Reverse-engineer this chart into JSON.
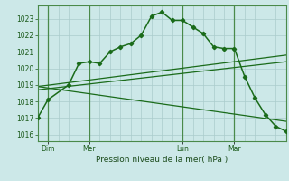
{
  "background_color": "#cce8e8",
  "grid_color": "#aacccc",
  "line_color": "#1a6b1a",
  "vline_color": "#4a8a4a",
  "title": "Pression niveau de la mer( hPa )",
  "ylabel_ticks": [
    1016,
    1017,
    1018,
    1019,
    1020,
    1021,
    1022,
    1023
  ],
  "ylim": [
    1015.6,
    1023.8
  ],
  "xlim": [
    0,
    24
  ],
  "xtick_positions": [
    1,
    5,
    14,
    19
  ],
  "xtick_labels": [
    "Dim",
    "Mer",
    "Lun",
    "Mar"
  ],
  "vline_positions": [
    1,
    5,
    14,
    19
  ],
  "series1_x": [
    0,
    1,
    3,
    4,
    5,
    6,
    7,
    8,
    9,
    10,
    11,
    12,
    13,
    14,
    15,
    16,
    17,
    18,
    19,
    20,
    21,
    22,
    23,
    24
  ],
  "series1_y": [
    1017.0,
    1018.1,
    1019.0,
    1020.3,
    1020.4,
    1020.3,
    1021.0,
    1021.3,
    1021.5,
    1022.0,
    1023.15,
    1023.4,
    1022.9,
    1022.9,
    1022.5,
    1022.1,
    1021.3,
    1021.2,
    1021.2,
    1019.5,
    1018.2,
    1017.2,
    1016.5,
    1016.2
  ],
  "line2_x": [
    0,
    24
  ],
  "line2_y": [
    1018.9,
    1020.8
  ],
  "line3_x": [
    0,
    24
  ],
  "line3_y": [
    1018.7,
    1020.4
  ],
  "line4_x": [
    0,
    24
  ],
  "line4_y": [
    1018.9,
    1016.8
  ]
}
